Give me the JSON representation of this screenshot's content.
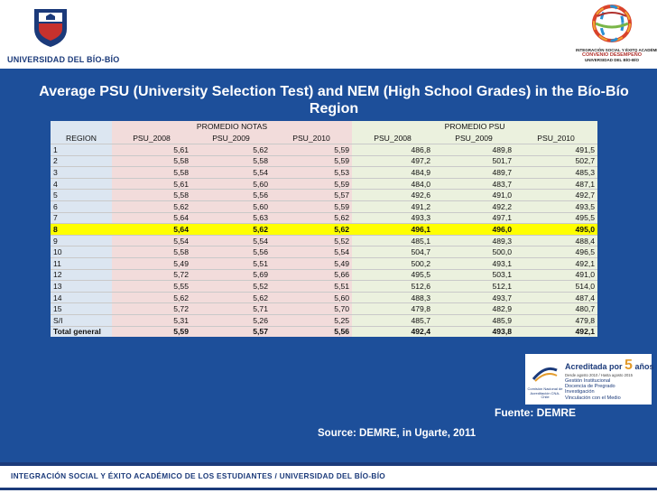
{
  "header": {
    "university_name": "UNIVERSIDAD DEL BÍO-BÍO",
    "convenio_line1": "INTEGRACIÓN SOCIAL Y ÉXITO ACADÉMICO",
    "convenio_main": "CONVENIO DESEMPEÑO",
    "convenio_line3": "UNIVERSIDAD DEL BÍO-BÍO"
  },
  "title": "Average PSU (University Selection Test) and NEM (High School Grades) in the  Bío-Bío Region",
  "table": {
    "group_nem": "PROMEDIO NOTAS",
    "group_psu": "PROMEDIO PSU",
    "columns": [
      "REGION",
      "PSU_2008",
      "PSU_2009",
      "PSU_2010",
      "PSU_2008",
      "PSU_2009",
      "PSU_2010"
    ],
    "rows": [
      [
        "1",
        "5,61",
        "5,62",
        "5,59",
        "486,8",
        "489,8",
        "491,5"
      ],
      [
        "2",
        "5,58",
        "5,58",
        "5,59",
        "497,2",
        "501,7",
        "502,7"
      ],
      [
        "3",
        "5,58",
        "5,54",
        "5,53",
        "484,9",
        "489,7",
        "485,3"
      ],
      [
        "4",
        "5,61",
        "5,60",
        "5,59",
        "484,0",
        "483,7",
        "487,1"
      ],
      [
        "5",
        "5,58",
        "5,56",
        "5,57",
        "492,6",
        "491,0",
        "492,7"
      ],
      [
        "6",
        "5,62",
        "5,60",
        "5,59",
        "491,2",
        "492,2",
        "493,5"
      ],
      [
        "7",
        "5,64",
        "5,63",
        "5,62",
        "493,3",
        "497,1",
        "495,5"
      ],
      [
        "8",
        "5,64",
        "5,62",
        "5,62",
        "496,1",
        "496,0",
        "495,0"
      ],
      [
        "9",
        "5,54",
        "5,54",
        "5,52",
        "485,1",
        "489,3",
        "488,4"
      ],
      [
        "10",
        "5,58",
        "5,56",
        "5,54",
        "504,7",
        "500,0",
        "496,5"
      ],
      [
        "11",
        "5,49",
        "5,51",
        "5,49",
        "500,2",
        "493,1",
        "492,1"
      ],
      [
        "12",
        "5,72",
        "5,69",
        "5,66",
        "495,5",
        "503,1",
        "491,0"
      ],
      [
        "13",
        "5,55",
        "5,52",
        "5,51",
        "512,6",
        "512,1",
        "514,0"
      ],
      [
        "14",
        "5,62",
        "5,62",
        "5,60",
        "488,3",
        "493,7",
        "487,4"
      ],
      [
        "15",
        "5,72",
        "5,71",
        "5,70",
        "479,8",
        "482,9",
        "480,7"
      ],
      [
        "S/I",
        "5,31",
        "5,26",
        "5,25",
        "485,7",
        "485,9",
        "479,8"
      ]
    ],
    "total": [
      "Total general",
      "5,59",
      "5,57",
      "5,56",
      "492,4",
      "493,8",
      "492,1"
    ],
    "highlight_region": "8",
    "highlight_color": "#ffff00"
  },
  "source": "Source: DEMRE, in Ugarte, 2011",
  "accreditation": {
    "title": "Acreditada por",
    "years_number": "5",
    "years_word": "años",
    "dates": "Desde agosto 2010 / Hasta agosto 2015",
    "items": [
      "Gestión Institucional",
      "Docencia de Pregrado",
      "Investigación",
      "Vinculación con el Medio"
    ],
    "agency": "Comisión Nacional de Acreditación CNA-Chile"
  },
  "fuente": "Fuente: DEMRE",
  "footer": "INTEGRACIÓN SOCIAL Y ÉXITO ACADÉMICO DE LOS ESTUDIANTES / UNIVERSIDAD DEL BÍO-BÍO",
  "colors": {
    "background": "#1d4f9a",
    "region_col": "#dce6f1",
    "nem_cols": "#f2dcdb",
    "psu_cols": "#ebf1de"
  }
}
